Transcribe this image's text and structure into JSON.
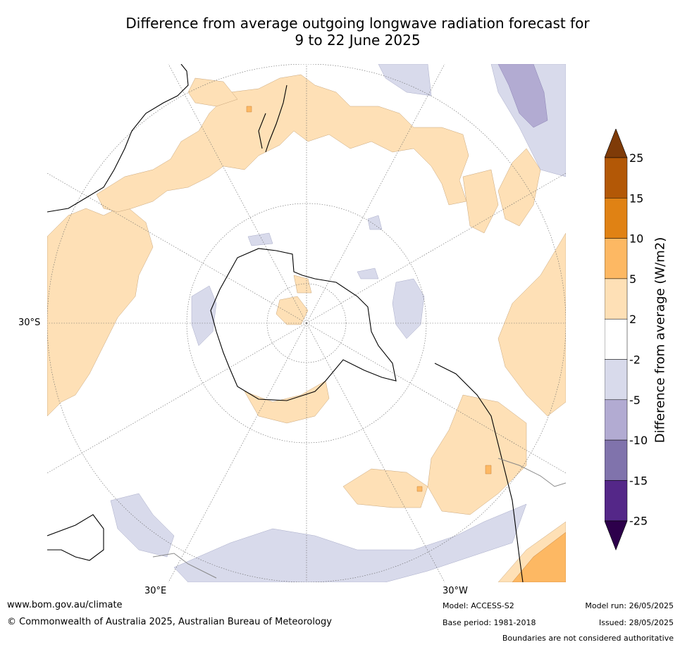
{
  "title": {
    "line1": "Difference from average outgoing longwave radiation forecast for",
    "line2": "9 to 22 June 2025"
  },
  "map": {
    "projection": "south-polar stereographic",
    "lat_label": "30°S",
    "lon_labels": {
      "east": "30°E",
      "west": "30°W"
    }
  },
  "colorbar": {
    "title": "Difference from average (W/m2)",
    "tick_labels": [
      "25",
      "15",
      "10",
      "5",
      "2",
      "-2",
      "-5",
      "-10",
      "-15",
      "-25"
    ],
    "colors": {
      "above_25": "#7f3b08",
      "15_25": "#b35806",
      "10_15": "#e08214",
      "5_10": "#fdb863",
      "2_5": "#fee0b6",
      "-2_2": "#ffffff",
      "-5_-2": "#d8daeb",
      "-10_-5": "#b2abd2",
      "-15_-10": "#8073ac",
      "-25_-15": "#542788",
      "below_-25": "#2d004b"
    }
  },
  "footer": {
    "website": "www.bom.gov.au/climate",
    "copyright": "© Commonwealth of Australia 2025, Australian Bureau of Meteorology",
    "model": "Model: ACCESS-S2",
    "base_period": "Base period: 1981-2018",
    "model_run": "Model run: 26/05/2025",
    "issued": "Issued: 28/05/2025",
    "disclaimer": "Boundaries are not considered authoritative"
  }
}
